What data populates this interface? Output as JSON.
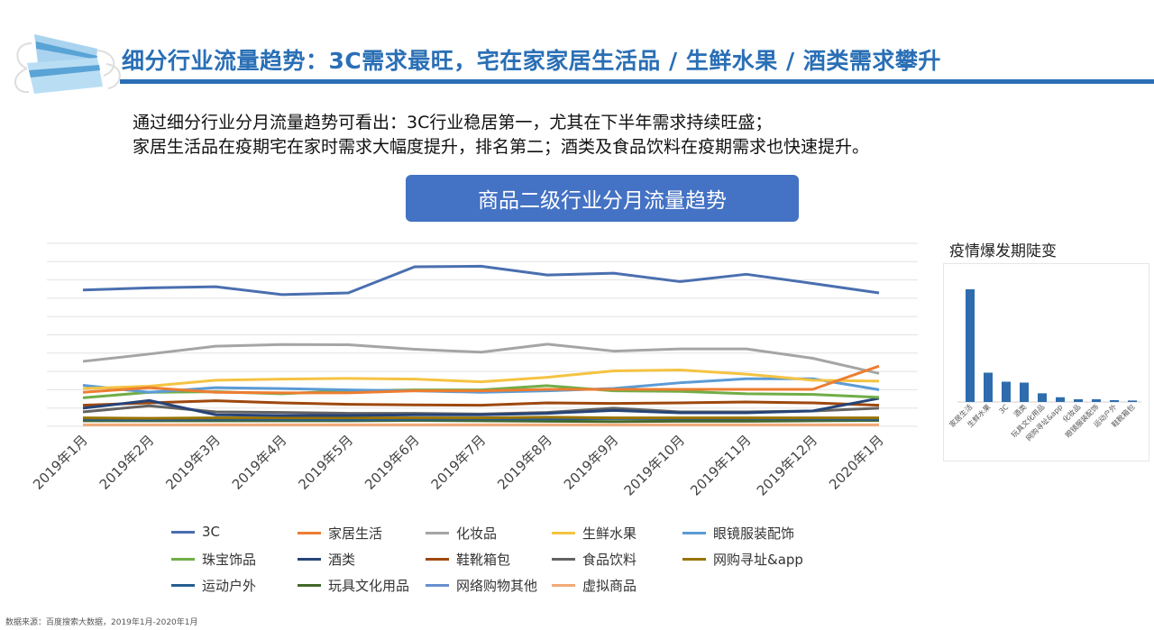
{
  "header": {
    "title": "细分行业流量趋势：3C需求最旺，宅在家家居生活品 / 生鲜水果 / 酒类需求攀升",
    "icon": "face-mask-icon",
    "accent_color": "#2a6fb5"
  },
  "description": [
    "通过细分行业分月流量趋势可看出：3C行业稳居第一，尤其在下半年需求持续旺盛；",
    "家居生活品在疫期宅在家时需求大幅度提升，排名第二；酒类及食品饮料在疫期需求也快速提升。"
  ],
  "footer": "数据来源：百度搜索大数据，2019年1月-2020年1月",
  "chart_data": [
    {
      "type": "line",
      "title": "商品二级行业分月流量趋势",
      "xlabel": "",
      "ylabel": "",
      "ylim": [
        0,
        10
      ],
      "y_tick_labels_shown": false,
      "grid": true,
      "legend": "bottom",
      "categories": [
        "2019年1月",
        "2019年2月",
        "2019年3月",
        "2019年4月",
        "2019年5月",
        "2019年6月",
        "2019年7月",
        "2019年8月",
        "2019年9月",
        "2019年10月",
        "2019年11月",
        "2019年12月",
        "2020年1月"
      ],
      "series": [
        {
          "name": "3C",
          "color": "#4a6fb0",
          "values": [
            7.45,
            7.57,
            7.63,
            7.2,
            7.29,
            8.72,
            8.75,
            8.27,
            8.37,
            7.91,
            8.31,
            7.81,
            7.29
          ]
        },
        {
          "name": "家居生活",
          "color": "#ed7d31",
          "values": [
            1.86,
            2.11,
            1.86,
            1.83,
            1.83,
            1.94,
            1.94,
            2.02,
            2.02,
            2.02,
            2.02,
            2.02,
            3.29
          ]
        },
        {
          "name": "化妆品",
          "color": "#a5a5a5",
          "values": [
            3.55,
            3.95,
            4.38,
            4.47,
            4.46,
            4.21,
            4.05,
            4.49,
            4.11,
            4.23,
            4.23,
            3.72,
            2.89
          ]
        },
        {
          "name": "生鲜水果",
          "color": "#f5c342",
          "values": [
            2.06,
            2.19,
            2.52,
            2.58,
            2.62,
            2.58,
            2.43,
            2.68,
            3.03,
            3.08,
            2.85,
            2.52,
            2.47
          ]
        },
        {
          "name": "眼镜服装配饰",
          "color": "#5b9bd5",
          "values": [
            2.24,
            1.86,
            2.11,
            2.06,
            1.99,
            1.94,
            1.86,
            1.94,
            2.07,
            2.38,
            2.6,
            2.6,
            2.0
          ]
        },
        {
          "name": "珠宝饰品",
          "color": "#70ad47",
          "values": [
            1.56,
            1.86,
            1.89,
            1.78,
            1.94,
            1.99,
            1.99,
            2.22,
            1.94,
            1.91,
            1.78,
            1.74,
            1.58
          ]
        },
        {
          "name": "酒类",
          "color": "#264478",
          "values": [
            0.99,
            1.41,
            0.63,
            0.59,
            0.59,
            0.63,
            0.63,
            0.71,
            0.87,
            0.74,
            0.74,
            0.84,
            1.53
          ]
        },
        {
          "name": "鞋靴箱包",
          "color": "#9e480e",
          "values": [
            1.15,
            1.28,
            1.4,
            1.28,
            1.2,
            1.17,
            1.15,
            1.28,
            1.25,
            1.28,
            1.33,
            1.28,
            1.15
          ]
        },
        {
          "name": "食品饮料",
          "color": "#636363",
          "values": [
            0.79,
            1.12,
            0.79,
            0.76,
            0.71,
            0.71,
            0.67,
            0.76,
            0.99,
            0.79,
            0.79,
            0.84,
            0.99
          ]
        },
        {
          "name": "网购寻址&app",
          "color": "#997300",
          "values": [
            0.46,
            0.44,
            0.46,
            0.46,
            0.46,
            0.46,
            0.46,
            0.5,
            0.46,
            0.46,
            0.46,
            0.46,
            0.46
          ]
        },
        {
          "name": "运动户外",
          "color": "#255e91",
          "values": [
            0.38,
            0.36,
            0.38,
            0.38,
            0.36,
            0.38,
            0.4,
            0.4,
            0.44,
            0.42,
            0.42,
            0.4,
            0.38
          ]
        },
        {
          "name": "玩具文化用品",
          "color": "#43682b",
          "values": [
            0.3,
            0.3,
            0.3,
            0.3,
            0.3,
            0.32,
            0.3,
            0.28,
            0.26,
            0.28,
            0.28,
            0.3,
            0.32
          ]
        },
        {
          "name": "网络购物其他",
          "color": "#698ed0",
          "values": [
            0.4,
            0.4,
            0.42,
            0.42,
            0.42,
            0.42,
            0.42,
            0.42,
            0.42,
            0.42,
            0.42,
            0.42,
            0.42
          ]
        },
        {
          "name": "虚拟商品",
          "color": "#f1a978",
          "values": [
            0.08,
            0.08,
            0.08,
            0.08,
            0.08,
            0.08,
            0.08,
            0.08,
            0.08,
            0.08,
            0.08,
            0.08,
            0.08
          ]
        }
      ]
    },
    {
      "type": "bar",
      "title": "疫情爆发期陡变",
      "xlabel": "",
      "ylabel": "",
      "y_tick_labels_shown": false,
      "grid": false,
      "color": "#2e6cae",
      "categories": [
        "家居生活",
        "生鲜水果",
        "3C",
        "酒类",
        "玩具文化用品",
        "网购寻址&app",
        "化妆品",
        "眼镜服装配饰",
        "运动户外",
        "鞋靴箱包"
      ],
      "values": [
        100,
        26,
        18,
        17.2,
        7.7,
        4.2,
        2.4,
        2.4,
        1.6,
        1.3
      ]
    }
  ]
}
